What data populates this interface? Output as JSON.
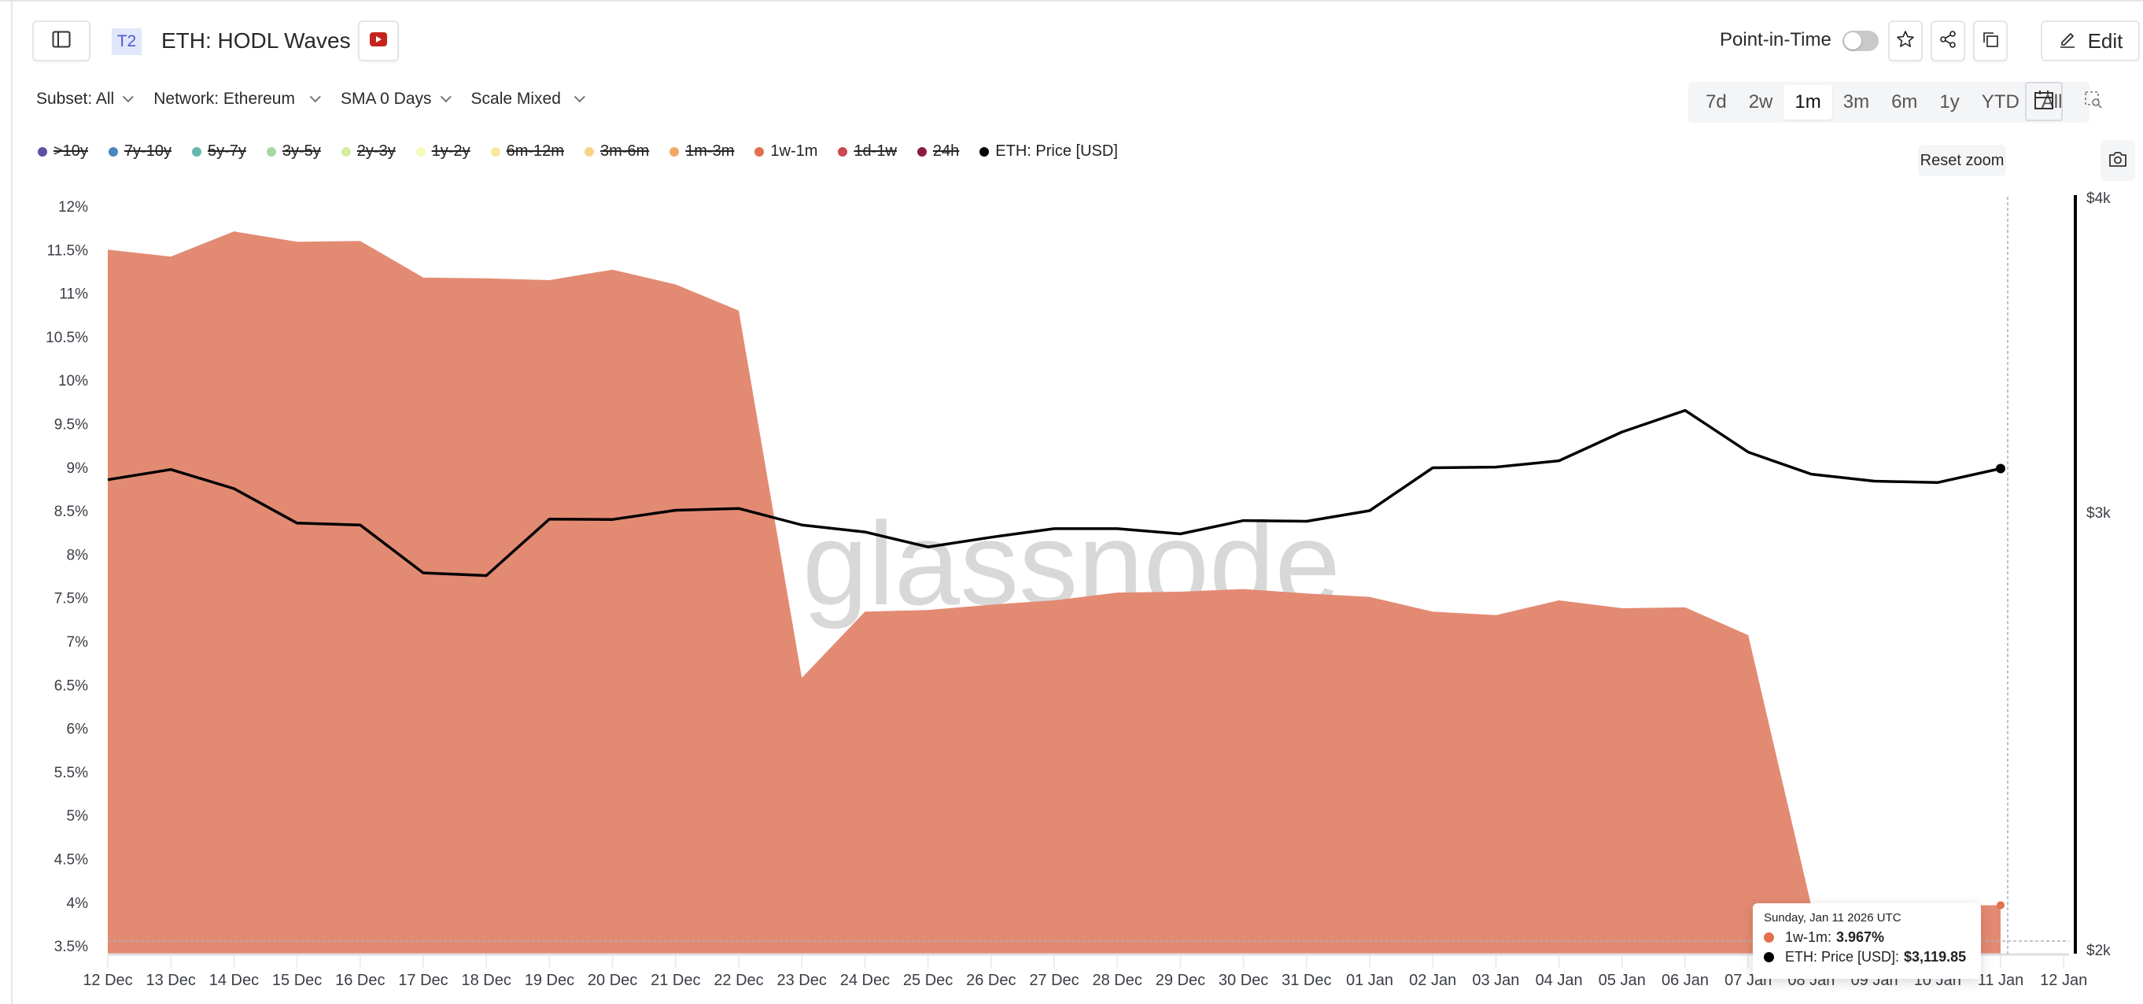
{
  "header": {
    "badge": "T2",
    "title": "ETH: HODL Waves",
    "point_in_time_label": "Point-in-Time",
    "point_in_time_enabled": false,
    "edit_label": "Edit",
    "icons": {
      "sidebar": "sidebar-toggle-icon",
      "video": "youtube-icon",
      "star": "star-icon",
      "share": "share-icon",
      "copy": "copy-icon",
      "edit": "pencil-icon"
    }
  },
  "filters": [
    {
      "label": "Subset: All"
    },
    {
      "label": "Network: Ethereum"
    },
    {
      "label": "SMA 0 Days"
    },
    {
      "label": "Scale Mixed"
    }
  ],
  "ranges": [
    {
      "label": "7d",
      "active": false
    },
    {
      "label": "2w",
      "active": false
    },
    {
      "label": "1m",
      "active": true
    },
    {
      "label": "3m",
      "active": false
    },
    {
      "label": "6m",
      "active": false
    },
    {
      "label": "1y",
      "active": false
    },
    {
      "label": "YTD",
      "active": false
    },
    {
      "label": "All",
      "active": false
    }
  ],
  "reset_zoom_label": "Reset zoom",
  "legend": [
    {
      "label": ">10y",
      "color": "#5e4fa2",
      "enabled": false
    },
    {
      "label": "7y-10y",
      "color": "#4b86bf",
      "enabled": false
    },
    {
      "label": "5y-7y",
      "color": "#66b8ae",
      "enabled": false
    },
    {
      "label": "3y-5y",
      "color": "#a6d8a4",
      "enabled": false
    },
    {
      "label": "2y-3y",
      "color": "#d8eda0",
      "enabled": false
    },
    {
      "label": "1y-2y",
      "color": "#f6f9bc",
      "enabled": false
    },
    {
      "label": "6m-12m",
      "color": "#fbe8a0",
      "enabled": false
    },
    {
      "label": "3m-6m",
      "color": "#f9d487",
      "enabled": false
    },
    {
      "label": "1m-3m",
      "color": "#f2a965",
      "enabled": false
    },
    {
      "label": "1w-1m",
      "color": "#e36f4e",
      "enabled": true
    },
    {
      "label": "1d-1w",
      "color": "#c94a52",
      "enabled": false
    },
    {
      "label": "24h",
      "color": "#8c1a42",
      "enabled": false
    },
    {
      "label": "ETH: Price [USD]",
      "color": "#000000",
      "enabled": true
    }
  ],
  "tooltip": {
    "date": "Sunday, Jan 11 2026 UTC",
    "series1_label": "1w-1m:",
    "series1_value": "3.967%",
    "series1_color": "#e36f4e",
    "series2_label": "ETH: Price [USD]:",
    "series2_value": "$3,119.85",
    "series2_color": "#000000"
  },
  "watermark": "glassnode",
  "chart_data": {
    "type": "area",
    "title": "ETH: HODL Waves",
    "categories": [
      "12 Dec",
      "13 Dec",
      "14 Dec",
      "15 Dec",
      "16 Dec",
      "17 Dec",
      "18 Dec",
      "19 Dec",
      "20 Dec",
      "21 Dec",
      "22 Dec",
      "23 Dec",
      "24 Dec",
      "25 Dec",
      "26 Dec",
      "27 Dec",
      "28 Dec",
      "29 Dec",
      "30 Dec",
      "31 Dec",
      "01 Jan",
      "02 Jan",
      "03 Jan",
      "04 Jan",
      "05 Jan",
      "06 Jan",
      "07 Jan",
      "08 Jan",
      "09 Jan",
      "10 Jan",
      "11 Jan"
    ],
    "x_tick_labels": [
      "12 Dec",
      "13 Dec",
      "14 Dec",
      "15 Dec",
      "16 Dec",
      "17 Dec",
      "18 Dec",
      "19 Dec",
      "20 Dec",
      "21 Dec",
      "22 Dec",
      "23 Dec",
      "24 Dec",
      "25 Dec",
      "26 Dec",
      "27 Dec",
      "28 Dec",
      "29 Dec",
      "30 Dec",
      "31 Dec",
      "01 Jan",
      "02 Jan",
      "03 Jan",
      "04 Jan",
      "05 Jan",
      "06 Jan",
      "07 Jan",
      "08 Jan",
      "09 Jan",
      "10 Jan",
      "11 Jan",
      "12 Jan"
    ],
    "series": [
      {
        "name": "1w-1m",
        "type": "area",
        "axis": "left",
        "unit": "%",
        "color": "#e38a73",
        "values": [
          11.5,
          11.42,
          11.71,
          11.59,
          11.6,
          11.18,
          11.17,
          11.15,
          11.27,
          11.1,
          10.8,
          6.58,
          7.34,
          7.36,
          7.42,
          7.47,
          7.56,
          7.57,
          7.6,
          7.55,
          7.51,
          7.34,
          7.3,
          7.47,
          7.38,
          7.39,
          7.07,
          3.96,
          3.96,
          3.96,
          3.967
        ]
      },
      {
        "name": "ETH: Price [USD]",
        "type": "line",
        "axis": "right",
        "unit": "USD",
        "color": "#000000",
        "values": [
          3088,
          3117,
          3063,
          2968,
          2963,
          2836,
          2829,
          2979,
          2978,
          3003,
          3008,
          2963,
          2944,
          2904,
          2930,
          2953,
          2953,
          2939,
          2975,
          2973,
          3002,
          3122,
          3124,
          3142,
          3226,
          3290,
          3167,
          3104,
          3084,
          3080,
          3119.85
        ]
      }
    ],
    "y_left": {
      "ticks": [
        "12%",
        "11.5%",
        "11%",
        "10.5%",
        "10%",
        "9.5%",
        "9%",
        "8.5%",
        "8%",
        "7.5%",
        "7%",
        "6.5%",
        "6%",
        "5.5%",
        "5%",
        "4.5%",
        "4%",
        "3.5%"
      ],
      "range": [
        3.5,
        12
      ]
    },
    "y_right": {
      "ticks": [
        "$4k",
        "$3k",
        "$2k"
      ],
      "scale": "log",
      "range": [
        2000,
        4000
      ]
    },
    "grid": false,
    "legend_position": "top"
  }
}
